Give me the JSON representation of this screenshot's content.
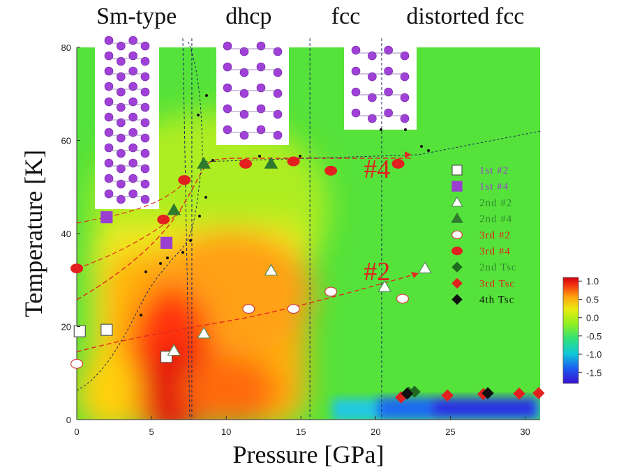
{
  "chart_data": {
    "type": "scatter",
    "xlabel": "Pressure [GPa]",
    "ylabel": "Temperature [K]",
    "xlim": [
      0,
      31
    ],
    "ylim": [
      0,
      80
    ],
    "xticks": [
      "0",
      "5",
      "10",
      "15",
      "20",
      "25",
      "30"
    ],
    "yticks": [
      "0",
      "20",
      "40",
      "60",
      "80"
    ],
    "phases": [
      {
        "label": "Sm-type",
        "x": 4.0
      },
      {
        "label": "dhcp",
        "x": 11.5
      },
      {
        "label": "fcc",
        "x": 18.0
      },
      {
        "label": "distorted fcc",
        "x": 26.0
      }
    ],
    "phase_boundaries_x": [
      7.7,
      15.6,
      20.4
    ],
    "annotations": [
      {
        "label": "#4",
        "x": 19.2,
        "y": 52
      },
      {
        "label": "#2",
        "x": 19.2,
        "y": 30
      }
    ],
    "colorbar": {
      "ticks": [
        "1.0",
        "0.5",
        "0.0",
        "-0.5",
        "-1.0",
        "-1.5"
      ],
      "range": [
        -1.8,
        1.1
      ],
      "colors": [
        "#3a0fd0",
        "#1b5cf0",
        "#10c8d8",
        "#2fe07a",
        "#8ff020",
        "#e8ec10",
        "#ffa010",
        "#f03010",
        "#d00010"
      ]
    },
    "series": [
      {
        "name": "1st #2",
        "marker": "square",
        "fill": "#ffffff",
        "stroke": "#555555",
        "x": [
          0.2,
          2.0,
          6.0
        ],
        "y": [
          19,
          19.3,
          13.5
        ]
      },
      {
        "name": "1st #4",
        "marker": "square",
        "fill": "#9a3fd0",
        "stroke": "#9a3fd0",
        "x": [
          2.0,
          6.0
        ],
        "y": [
          43.5,
          38
        ]
      },
      {
        "name": "2nd #2",
        "marker": "triangle",
        "fill": "#ffffff",
        "stroke": "#5a8a5a",
        "x": [
          6.5,
          8.5,
          13.0,
          20.6,
          23.3
        ],
        "y": [
          14.8,
          18.5,
          32,
          28.5,
          32.5
        ]
      },
      {
        "name": "2nd #4",
        "marker": "triangle",
        "fill": "#2f7a2f",
        "stroke": "#2f7a2f",
        "x": [
          6.5,
          8.5,
          13.0
        ],
        "y": [
          45,
          55,
          55
        ]
      },
      {
        "name": "3rd #2",
        "marker": "circle",
        "fill": "#ffffff",
        "stroke": "#d04040",
        "x": [
          0.0,
          11.5,
          14.5,
          17.0,
          21.8
        ],
        "y": [
          12,
          23.8,
          23.8,
          27.5,
          26
        ]
      },
      {
        "name": "3rd #4",
        "marker": "circle",
        "fill": "#e22020",
        "stroke": "#e22020",
        "x": [
          0.0,
          5.8,
          7.2,
          11.3,
          14.5,
          17.0,
          21.5
        ],
        "y": [
          32.5,
          43,
          51.5,
          55,
          55.5,
          53.5,
          55
        ]
      },
      {
        "name": "2nd Tsc",
        "marker": "diamond",
        "fill": "#1f6a1f",
        "stroke": "#1f6a1f",
        "x": [
          22.2,
          22.6
        ],
        "y": [
          5.8,
          6.0
        ]
      },
      {
        "name": "3rd Tsc",
        "marker": "diamond",
        "fill": "#e22020",
        "stroke": "#e22020",
        "x": [
          21.7,
          24.8,
          27.2,
          29.6,
          30.9
        ],
        "y": [
          4.8,
          5.2,
          5.5,
          5.6,
          5.7
        ]
      },
      {
        "name": "4th Tsc",
        "marker": "diamond",
        "fill": "#111111",
        "stroke": "#111111",
        "x": [
          22.1,
          27.5
        ],
        "y": [
          5.6,
          5.7
        ]
      }
    ]
  }
}
